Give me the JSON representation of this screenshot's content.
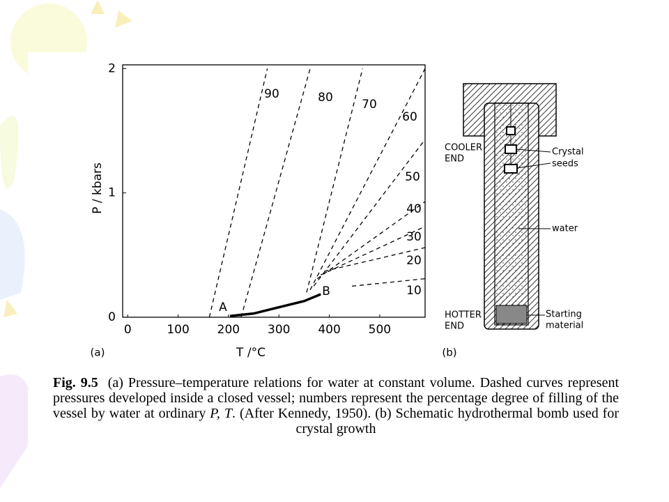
{
  "chart_data": {
    "type": "line",
    "xlabel": "T /°C",
    "ylabel": "P / kbars",
    "xlim": [
      -10,
      590
    ],
    "ylim": [
      0,
      2.03
    ],
    "xticks": [
      0,
      100,
      200,
      300,
      400,
      500
    ],
    "yticks": [
      0,
      1,
      2
    ],
    "grid": false,
    "series": [
      {
        "name": "90",
        "color": "#000000",
        "dashed": true,
        "x": [
          162,
          277
        ],
        "values": [
          0,
          2.0
        ]
      },
      {
        "name": "80",
        "color": "#000000",
        "dashed": true,
        "x": [
          225,
          362
        ],
        "values": [
          0,
          2.0
        ]
      },
      {
        "name": "70",
        "color": "#000000",
        "dashed": true,
        "x": [
          355,
          466
        ],
        "values": [
          0.2,
          2.0
        ]
      },
      {
        "name": "60",
        "color": "#000000",
        "dashed": true,
        "x": [
          362,
          590
        ],
        "values": [
          0.22,
          2.0
        ]
      },
      {
        "name": "50",
        "color": "#000000",
        "dashed": true,
        "x": [
          369,
          590
        ],
        "values": [
          0.25,
          1.43
        ]
      },
      {
        "name": "40",
        "color": "#000000",
        "dashed": true,
        "x": [
          376,
          590
        ],
        "values": [
          0.31,
          0.93
        ]
      },
      {
        "name": "30",
        "color": "#000000",
        "dashed": true,
        "x": [
          383,
          590
        ],
        "values": [
          0.34,
          0.73
        ]
      },
      {
        "name": "20",
        "color": "#000000",
        "dashed": true,
        "x": [
          390,
          590
        ],
        "values": [
          0.37,
          0.56
        ]
      },
      {
        "name": "10",
        "color": "#000000",
        "dashed": true,
        "x": [
          445,
          590
        ],
        "values": [
          0.25,
          0.31
        ]
      },
      {
        "color": "#000000",
        "dashed": false,
        "x": [
          203,
          250,
          300,
          350,
          383
        ],
        "values": [
          0.01,
          0.03,
          0.08,
          0.13,
          0.185
        ]
      }
    ],
    "annotations": [
      "A",
      "B"
    ],
    "panel_label": "(a)"
  },
  "diagram": {
    "panel_label": "(b)",
    "cooler_end": [
      "COOLER",
      "END"
    ],
    "crystal_seeds": [
      "Crystal",
      "seeds"
    ],
    "water": "water",
    "hotter_end": [
      "HOTTER",
      "END"
    ],
    "starting_material": [
      "Starting",
      "material"
    ]
  },
  "caption": {
    "label": "Fig. 9.5",
    "text_1": "(a) Pressure–temperature relations for water at constant volume. Dashed curves represent pressures developed inside a closed vessel; numbers represent the percentage degree of filling of the vessel by water at ordinary ",
    "italic": "P, T",
    "text_2": ". (After Kennedy, 1950). (b) Schematic hydrothermal bomb used for crystal growth"
  }
}
